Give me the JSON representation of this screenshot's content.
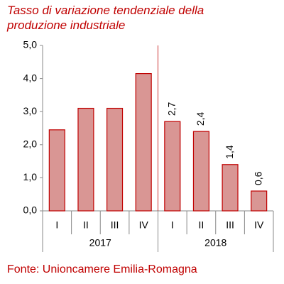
{
  "chart_data": {
    "type": "bar",
    "title": "Tasso di variazione tendenziale della produzione industriale",
    "categories": [
      "I",
      "II",
      "III",
      "IV",
      "I",
      "II",
      "III",
      "IV"
    ],
    "groups": [
      {
        "label": "2017",
        "count": 4
      },
      {
        "label": "2018",
        "count": 4
      }
    ],
    "values": [
      2.45,
      3.1,
      3.1,
      4.15,
      2.7,
      2.4,
      1.4,
      0.6
    ],
    "value_labels": [
      null,
      null,
      null,
      null,
      "2,7",
      "2,4",
      "1,4",
      "0,6"
    ],
    "color": "#d99694",
    "edge_color": "#c00000",
    "ylim": [
      0,
      5
    ],
    "yticks": [
      {
        "value": 0,
        "label": "0,0"
      },
      {
        "value": 1,
        "label": "1,0"
      },
      {
        "value": 2,
        "label": "2,0"
      },
      {
        "value": 3,
        "label": "3,0"
      },
      {
        "value": 4,
        "label": "4,0"
      },
      {
        "value": 5,
        "label": "5,0"
      }
    ],
    "grid": false,
    "source": "Fonte: Unioncamere Emilia-Romagna"
  }
}
